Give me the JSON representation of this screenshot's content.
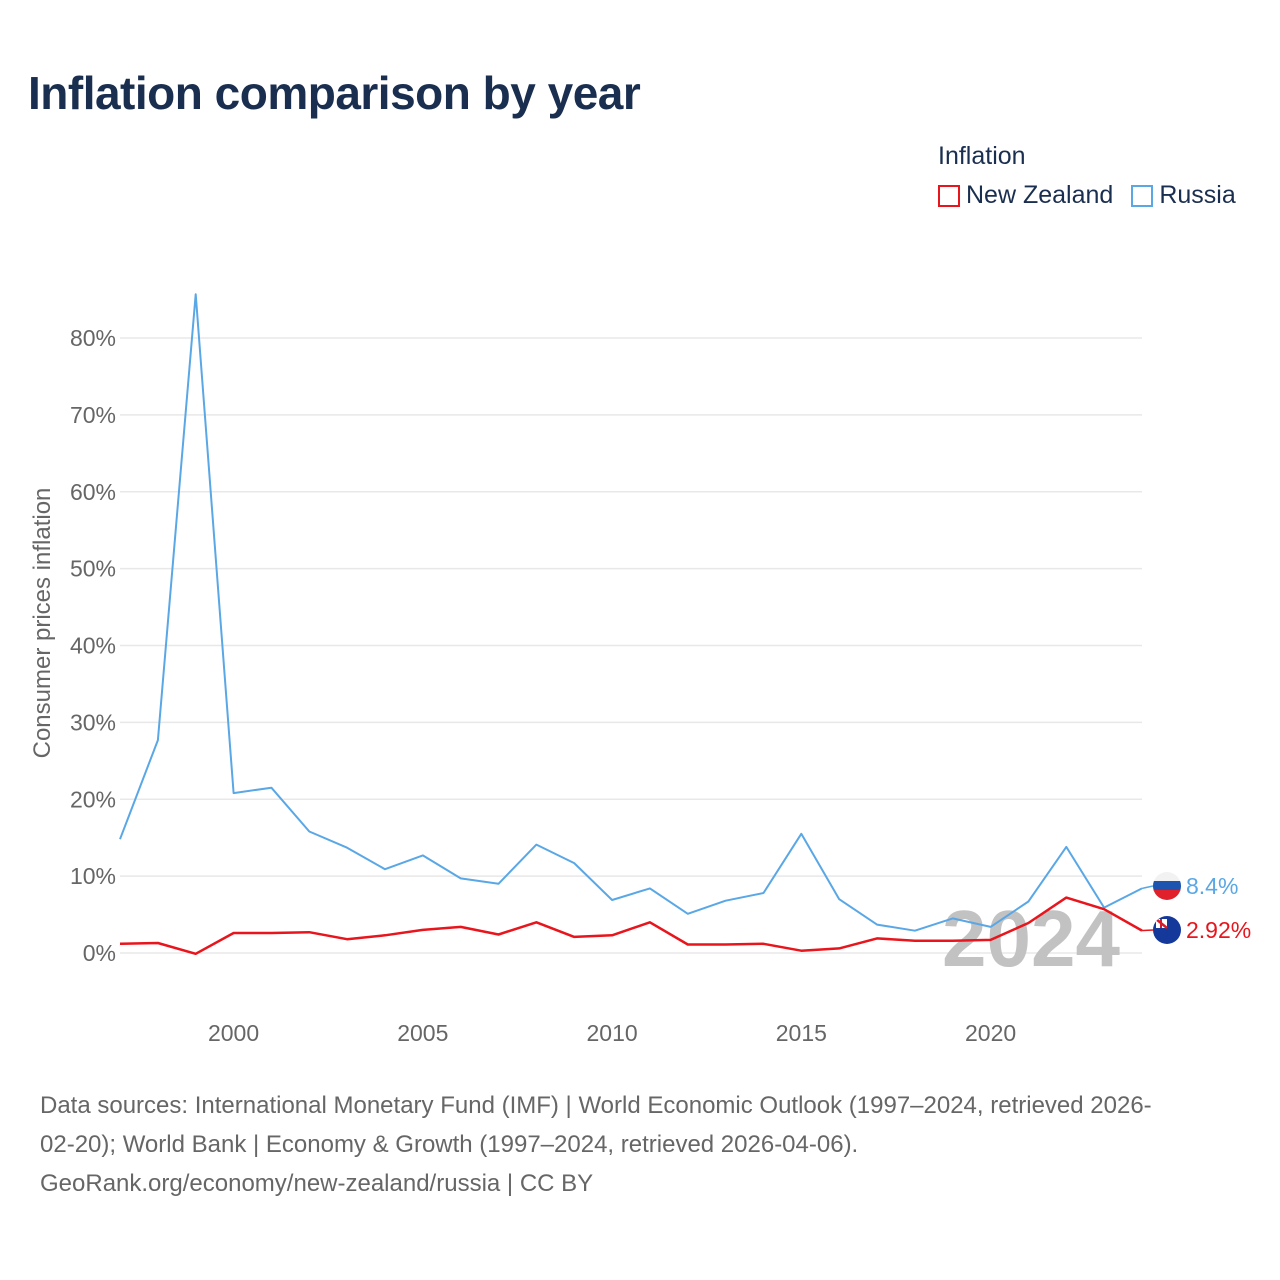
{
  "title": "Inflation comparison by year",
  "legend": {
    "title": "Inflation",
    "items": [
      {
        "name": "New Zealand",
        "color": "#e8151c"
      },
      {
        "name": "Russia",
        "color": "#5aa7e6"
      }
    ]
  },
  "year_watermark": "2024",
  "footer": {
    "line1": "Data sources: International Monetary Fund (IMF) | World Economic Outlook (1997–2024, retrieved 2026-",
    "line2": "02-20); World Bank | Economy & Growth (1997–2024, retrieved 2026-04-06).",
    "line3": "GeoRank.org/economy/new-zealand/russia | CC BY"
  },
  "chart_data": {
    "type": "line",
    "title": "Inflation comparison by year",
    "xlabel": "",
    "ylabel": "Consumer prices inflation",
    "xlim": [
      1997,
      2024
    ],
    "ylim": [
      -6,
      86
    ],
    "y_ticks": [
      0,
      10,
      20,
      30,
      40,
      50,
      60,
      70,
      80
    ],
    "y_tick_labels": [
      "0%",
      "10%",
      "20%",
      "30%",
      "40%",
      "50%",
      "60%",
      "70%",
      "80%"
    ],
    "x_ticks": [
      2000,
      2005,
      2010,
      2015,
      2020
    ],
    "x_tick_labels": [
      "2000",
      "2005",
      "2010",
      "2015",
      "2020"
    ],
    "grid": true,
    "legend_position": "top-right",
    "x": [
      1997,
      1998,
      1999,
      2000,
      2001,
      2002,
      2003,
      2004,
      2005,
      2006,
      2007,
      2008,
      2009,
      2010,
      2011,
      2012,
      2013,
      2014,
      2015,
      2016,
      2017,
      2018,
      2019,
      2020,
      2021,
      2022,
      2023,
      2024
    ],
    "series": [
      {
        "name": "Russia",
        "color": "#5aa7e6",
        "end_label": "8.4%",
        "values": [
          14.8,
          27.7,
          85.7,
          20.8,
          21.5,
          15.8,
          13.7,
          10.9,
          12.7,
          9.7,
          9.0,
          14.1,
          11.7,
          6.9,
          8.4,
          5.1,
          6.8,
          7.8,
          15.5,
          7.0,
          3.7,
          2.9,
          4.5,
          3.4,
          6.7,
          13.8,
          5.9,
          8.4
        ]
      },
      {
        "name": "New Zealand",
        "color": "#e8151c",
        "end_label": "2.92%",
        "values": [
          1.2,
          1.3,
          -0.1,
          2.6,
          2.6,
          2.7,
          1.8,
          2.3,
          3.0,
          3.4,
          2.4,
          4.0,
          2.1,
          2.3,
          4.0,
          1.1,
          1.1,
          1.2,
          0.3,
          0.6,
          1.9,
          1.6,
          1.6,
          1.7,
          3.9,
          7.2,
          5.7,
          2.92
        ]
      }
    ]
  }
}
